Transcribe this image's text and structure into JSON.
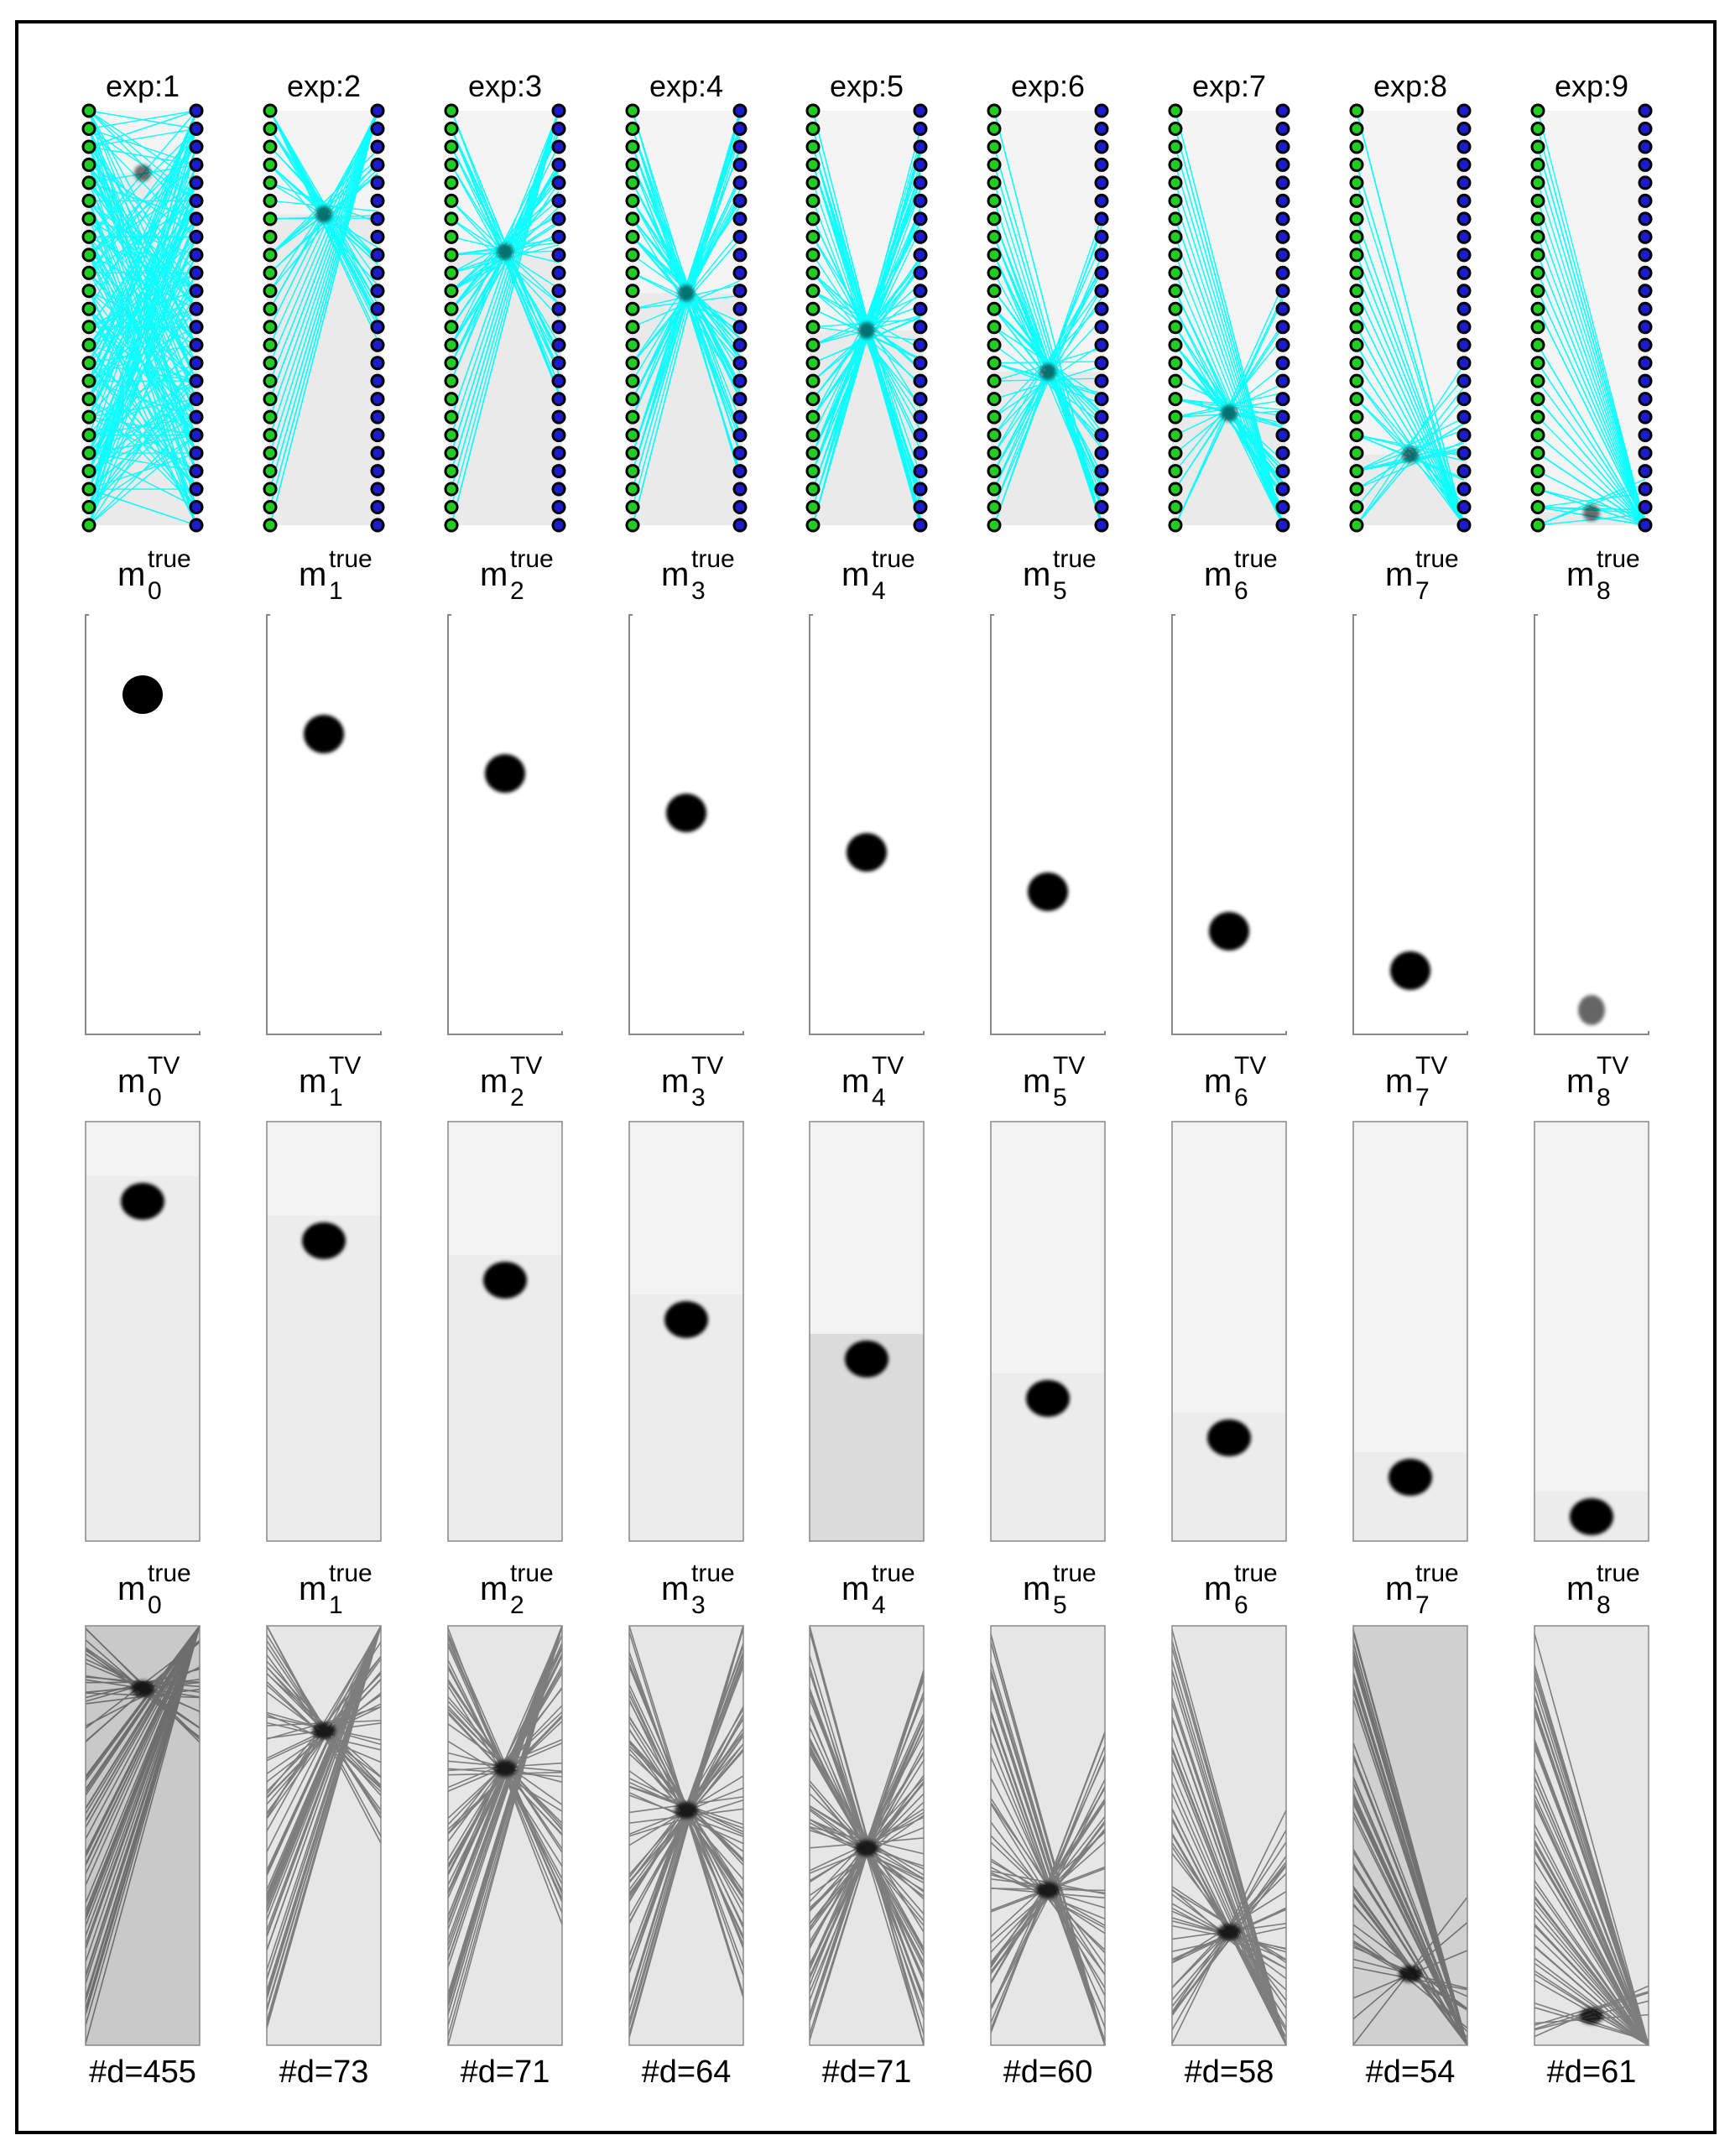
{
  "experiments": [
    {
      "exp_label": "exp:1",
      "true_base": "m",
      "true_sup": "true",
      "true_sub": "0",
      "tv_base": "m",
      "tv_sup": "TV",
      "tv_sub": "0",
      "nd_label": "#d=455",
      "depth": 0.15,
      "nd": 455
    },
    {
      "exp_label": "exp:2",
      "true_base": "m",
      "true_sup": "true",
      "true_sub": "1",
      "tv_base": "m",
      "tv_sup": "TV",
      "tv_sub": "1",
      "nd_label": "#d=73",
      "depth": 0.25,
      "nd": 73
    },
    {
      "exp_label": "exp:3",
      "true_base": "m",
      "true_sup": "true",
      "true_sub": "2",
      "tv_base": "m",
      "tv_sup": "TV",
      "tv_sub": "2",
      "nd_label": "#d=71",
      "depth": 0.34,
      "nd": 71
    },
    {
      "exp_label": "exp:4",
      "true_base": "m",
      "true_sup": "true",
      "true_sub": "3",
      "tv_base": "m",
      "tv_sup": "TV",
      "tv_sub": "3",
      "nd_label": "#d=64",
      "depth": 0.44,
      "nd": 64
    },
    {
      "exp_label": "exp:5",
      "true_base": "m",
      "true_sup": "true",
      "true_sub": "4",
      "tv_base": "m",
      "tv_sup": "TV",
      "tv_sub": "4",
      "nd_label": "#d=71",
      "depth": 0.53,
      "nd": 71
    },
    {
      "exp_label": "exp:6",
      "true_base": "m",
      "true_sup": "true",
      "true_sub": "5",
      "tv_base": "m",
      "tv_sup": "TV",
      "tv_sub": "5",
      "nd_label": "#d=60",
      "depth": 0.63,
      "nd": 60
    },
    {
      "exp_label": "exp:7",
      "true_base": "m",
      "true_sup": "true",
      "true_sub": "6",
      "tv_base": "m",
      "tv_sup": "TV",
      "tv_sub": "6",
      "nd_label": "#d=58",
      "depth": 0.73,
      "nd": 58
    },
    {
      "exp_label": "exp:8",
      "true_base": "m",
      "true_sup": "true",
      "true_sub": "7",
      "tv_base": "m",
      "tv_sup": "TV",
      "tv_sub": "7",
      "nd_label": "#d=54",
      "depth": 0.83,
      "nd": 54
    },
    {
      "exp_label": "exp:9",
      "true_base": "m",
      "true_sup": "true",
      "true_sub": "8",
      "tv_base": "m",
      "tv_sup": "TV",
      "tv_sub": "8",
      "nd_label": "#d=61",
      "depth": 0.97,
      "nd": 61
    }
  ],
  "colors": {
    "ray": "#00ffff",
    "source_fill": "#22cc22",
    "receiver_fill": "#1c1ccc",
    "marker_edge": "#000000",
    "anomaly": "#000000"
  }
}
